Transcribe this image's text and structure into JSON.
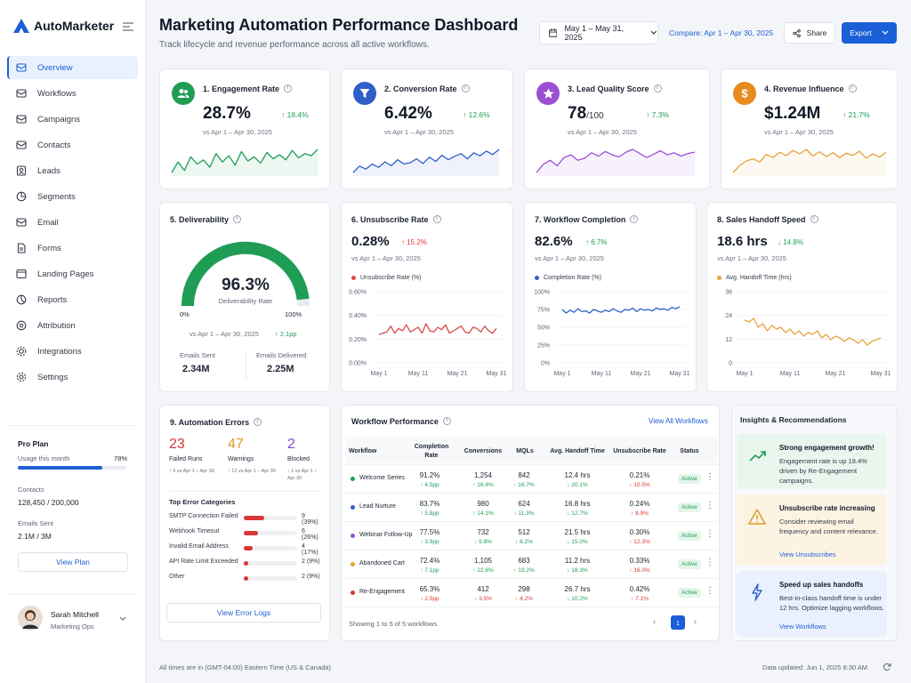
{
  "app": {
    "name": "AutoMarketer"
  },
  "sidebar": {
    "items": [
      {
        "label": "Overview",
        "icon": "overview-icon",
        "active": true
      },
      {
        "label": "Workflows",
        "icon": "workflow-icon"
      },
      {
        "label": "Campaigns",
        "icon": "campaign-icon"
      },
      {
        "label": "Contacts",
        "icon": "contacts-icon"
      },
      {
        "label": "Leads",
        "icon": "leads-icon"
      },
      {
        "label": "Segments",
        "icon": "segments-icon"
      },
      {
        "label": "Email",
        "icon": "email-icon"
      },
      {
        "label": "Forms",
        "icon": "forms-icon"
      },
      {
        "label": "Landing Pages",
        "icon": "landing-pages-icon"
      },
      {
        "label": "Reports",
        "icon": "reports-icon"
      },
      {
        "label": "Attribution",
        "icon": "attribution-icon"
      },
      {
        "label": "Integrations",
        "icon": "integrations-icon"
      },
      {
        "label": "Settings",
        "icon": "settings-icon"
      }
    ]
  },
  "plan": {
    "title": "Pro Plan",
    "usage_label": "Usage this month",
    "usage_pct": "78%",
    "usage_value": 0.78,
    "contacts_label": "Contacts",
    "contacts_value": "128,450 / 200,000",
    "emails_label": "Emails Sent",
    "emails_value": "2.1M / 3M",
    "button": "View Plan"
  },
  "user": {
    "name": "Sarah Mitchell",
    "role": "Marketing Ops"
  },
  "header": {
    "title": "Marketing Automation Performance Dashboard",
    "subtitle": "Track lifecycle and revenue performance across all active workflows.",
    "date_range": "May 1 – May 31, 2025",
    "compare": "Compare: Apr 1 – Apr 30, 2025",
    "share": "Share",
    "export": "Export"
  },
  "kpis": [
    {
      "title": "1. Engagement Rate",
      "value": "28.7%",
      "unit": "",
      "change": "↑ 18.4%",
      "vs": "vs Apr 1 – Apr 30, 2025",
      "color": "#1f9d55",
      "icon": "people-icon",
      "spark": [
        5,
        6,
        5.2,
        6.5,
        5.8,
        6.2,
        5.5,
        6.8,
        6,
        6.6,
        5.7,
        7,
        6.1,
        6.5,
        5.9,
        6.9,
        6.3,
        6.7,
        6.2,
        7.1,
        6.4,
        6.8,
        6.6,
        7.2
      ]
    },
    {
      "title": "2. Conversion Rate",
      "value": "6.42%",
      "unit": "",
      "change": "↑ 12.6%",
      "vs": "vs Apr 1 – Apr 30, 2025",
      "color": "#2f5fc9",
      "icon": "funnel-icon",
      "spark": [
        3,
        4.5,
        3.8,
        5,
        4.2,
        5.5,
        4.6,
        6,
        5,
        5.3,
        6.2,
        5.1,
        6.6,
        5.6,
        7,
        6,
        6.8,
        7.4,
        6.2,
        7.6,
        6.9,
        8,
        7.2,
        8.4
      ]
    },
    {
      "title": "3. Lead Quality Score",
      "value": "78",
      "unit": "/100",
      "change": "↑ 7.3%",
      "vs": "vs Apr 1 – Apr 30, 2025",
      "color": "#9b4fd2",
      "icon": "star-icon",
      "spark": [
        4,
        5.2,
        5.8,
        5,
        6.2,
        6.6,
        5.8,
        6.1,
        6.9,
        6.4,
        7.1,
        6.6,
        6.3,
        7,
        7.4,
        6.8,
        6.2,
        6.7,
        7.2,
        6.6,
        6.9,
        6.4,
        6.8,
        7
      ]
    },
    {
      "title": "4. Revenue Influence",
      "value": "$1.24M",
      "unit": "",
      "change": "↑ 21.7%",
      "vs": "vs Apr 1 – Apr 30, 2025",
      "color": "#e6a23c",
      "icon": "dollar-icon",
      "spark": [
        3.5,
        4.8,
        5.6,
        6,
        5.4,
        6.8,
        6.2,
        7.2,
        6.6,
        7.5,
        6.9,
        7.7,
        6.5,
        7.3,
        6.4,
        7.1,
        6.2,
        7,
        6.6,
        7.4,
        6.1,
        6.9,
        6.3,
        7.2
      ]
    }
  ],
  "deliverability": {
    "title": "5. Deliverability",
    "value": "96.3%",
    "label": "Deliverability Rate",
    "pct": 0.963,
    "min": "0%",
    "max": "100%",
    "vs": "vs Apr 1 – Apr 30, 2025",
    "change": "↑ 2.1pp",
    "sent_label": "Emails Sent",
    "sent_value": "2.34M",
    "delivered_label": "Emails Delivered",
    "delivered_value": "2.25M"
  },
  "metrics": [
    {
      "title": "6. Unsubscribe Rate",
      "value": "0.28%",
      "change": "↑ 15.2%",
      "dir": "down",
      "vs": "vs Apr 1 – Apr 30, 2025",
      "legend": "Unsubscribe Rate (%)",
      "color": "#d94a4a",
      "yticks": [
        "0.60%",
        "0.40%",
        "0.20%",
        "0.00%"
      ],
      "ymin": 0,
      "ymax": 0.6,
      "xticks": [
        "May 1",
        "May 11",
        "May 21",
        "May 31"
      ],
      "values": [
        0.24,
        0.25,
        0.26,
        0.31,
        0.25,
        0.29,
        0.27,
        0.32,
        0.26,
        0.28,
        0.3,
        0.25,
        0.33,
        0.27,
        0.26,
        0.3,
        0.28,
        0.32,
        0.25,
        0.27,
        0.29,
        0.31,
        0.26,
        0.25,
        0.3,
        0.29,
        0.26,
        0.31,
        0.27,
        0.25,
        0.29
      ]
    },
    {
      "title": "7. Workflow Completion",
      "value": "82.6%",
      "change": "↑ 6.7%",
      "dir": "up",
      "vs": "vs Apr 1 – Apr 30, 2025",
      "legend": "Completion Rate (%)",
      "color": "#2f5fc9",
      "yticks": [
        "100%",
        "75%",
        "50%",
        "25%",
        "0%"
      ],
      "ymin": 0,
      "ymax": 100,
      "xticks": [
        "May 1",
        "May 11",
        "May 21",
        "May 31"
      ],
      "values": [
        75,
        70,
        74,
        71,
        76,
        72,
        73,
        70,
        75,
        73,
        71,
        74,
        72,
        76,
        73,
        71,
        75,
        74,
        77,
        72,
        76,
        74,
        75,
        73,
        77,
        75,
        76,
        74,
        78,
        76,
        79
      ]
    },
    {
      "title": "8. Sales Handoff Speed",
      "value": "18.6 hrs",
      "change": "↓ 14.8%",
      "dir": "up",
      "vs": "vs Apr 1 – Apr 30, 2025",
      "legend": "Avg. Handoff Time (hrs)",
      "color": "#e6a23c",
      "yticks": [
        "36",
        "24",
        "12",
        "0"
      ],
      "ymin": 0,
      "ymax": 40,
      "xticks": [
        "May 1",
        "May 11",
        "May 21",
        "May 31"
      ],
      "values": [
        24,
        23,
        25,
        20,
        22,
        18,
        21,
        19,
        20,
        17,
        19,
        16,
        18,
        15,
        17,
        16,
        18,
        14,
        16,
        13,
        15,
        14,
        12,
        14,
        13,
        11,
        13,
        10,
        12,
        13,
        14
      ]
    }
  ],
  "errors": {
    "title": "9. Automation Errors",
    "failed": "23",
    "failed_label": "Failed Runs",
    "failed_vs": "↑ 9 vs Apr 1 – Apr 30",
    "warnings": "47",
    "warnings_label": "Warnings",
    "warnings_vs": "↑ 12 vs Apr 1 – Apr 30",
    "blocked": "2",
    "blocked_label": "Blocked",
    "blocked_vs": "↓ 1 vs Apr 1 – Apr 30",
    "categories_title": "Top Error Categories",
    "categories": [
      {
        "label": "SMTP Connection Failed",
        "value": "9 (39%)",
        "pct": 0.39
      },
      {
        "label": "Webhook Timeout",
        "value": "6 (26%)",
        "pct": 0.26
      },
      {
        "label": "Invalid Email Address",
        "value": "4 (17%)",
        "pct": 0.17
      },
      {
        "label": "API Rate Limit Exceeded",
        "value": "2 (9%)",
        "pct": 0.09
      },
      {
        "label": "Other",
        "value": "2 (9%)",
        "pct": 0.09
      }
    ],
    "button": "View Error Logs"
  },
  "workflow": {
    "title": "Workflow Performance",
    "view_all": "View All Workflows",
    "headers": [
      "Workflow",
      "Completion Rate",
      "Conversions",
      "MQLs",
      "Avg. Handoff Time",
      "Unsubscribe Rate",
      "Status"
    ],
    "rows": [
      {
        "name": "Welcome Series",
        "dot": "#1f9d55",
        "completion": "91.2%",
        "completion_chg": "↑ 4.5pp",
        "conversions": "1,254",
        "conversions_chg": "↑ 18.4%",
        "mqls": "842",
        "mqls_chg": "↑ 16.7%",
        "handoff": "12.4 hrs",
        "handoff_chg": "↓ 20.1%",
        "unsub": "0.21%",
        "unsub_chg": "↑ 10.5%",
        "status": "Active"
      },
      {
        "name": "Lead Nurture",
        "dot": "#2f5fc9",
        "completion": "83.7%",
        "completion_chg": "↑ 5.8pp",
        "conversions": "980",
        "conversions_chg": "↑ 14.1%",
        "mqls": "624",
        "mqls_chg": "↑ 11.3%",
        "handoff": "16.8 hrs",
        "handoff_chg": "↓ 12.7%",
        "unsub": "0.24%",
        "unsub_chg": "↑ 8.9%",
        "status": "Active"
      },
      {
        "name": "Webinar Follow-Up",
        "dot": "#9b4fd2",
        "completion": "77.5%",
        "completion_chg": "↑ 3.9pp",
        "conversions": "732",
        "conversions_chg": "↑ 9.8%",
        "mqls": "512",
        "mqls_chg": "↑ 8.2%",
        "handoff": "21.5 hrs",
        "handoff_chg": "↓ 15.0%",
        "unsub": "0.30%",
        "unsub_chg": "↑ 12.3%",
        "status": "Active"
      },
      {
        "name": "Abandoned Cart",
        "dot": "#e6a23c",
        "completion": "72.4%",
        "completion_chg": "↑ 7.1pp",
        "conversions": "1,105",
        "conversions_chg": "↑ 22.6%",
        "mqls": "683",
        "mqls_chg": "↑ 19.2%",
        "handoff": "11.2 hrs",
        "handoff_chg": "↓ 18.3%",
        "unsub": "0.33%",
        "unsub_chg": "↑ 16.0%",
        "status": "Active"
      },
      {
        "name": "Re-Engagement",
        "dot": "#d93636",
        "completion": "65.3%",
        "completion_chg": "↓ 2.5pp",
        "conversions": "412",
        "conversions_chg": "↓ 3.5%",
        "mqls": "298",
        "mqls_chg": "↓ 4.2%",
        "handoff": "26.7 hrs",
        "handoff_chg": "↓ 10.2%",
        "unsub": "0.42%",
        "unsub_chg": "↑ 7.1%",
        "status": "Active"
      }
    ],
    "showing": "Showing 1 to 5 of 5 workflows",
    "page": "1"
  },
  "insights": {
    "title": "Insights & Recommendations",
    "items": [
      {
        "title": "Strong engagement growth!",
        "body": "Engagement rate is up 18.4% driven by Re-Engagement campaigns.",
        "link": "",
        "bg": "#e9f6ee",
        "icon": "trend-up-icon"
      },
      {
        "title": "Unsubscribe rate increasing",
        "body": "Consider reviewing email frequency and content relevance.",
        "link": "View Unsubscribes",
        "bg": "#fdf3e3",
        "icon": "warning-icon"
      },
      {
        "title": "Speed up sales handoffs",
        "body": "Best-in-class handoff time is under 12 hrs. Optimize lagging workflows.",
        "link": "View Workflows",
        "bg": "#eaf1fd",
        "icon": "lightning-icon"
      }
    ]
  },
  "footer": {
    "timezone": "All times are in (GMT-04:00) Eastern Time (US & Canada)",
    "updated": "Data updated: Jun 1, 2025 8:30 AM"
  }
}
